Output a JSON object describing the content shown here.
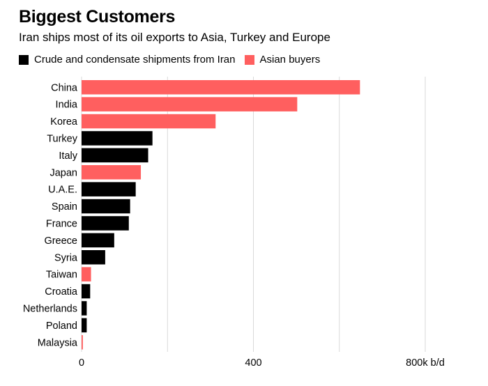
{
  "chart_data": {
    "type": "bar",
    "orientation": "horizontal",
    "title": "Biggest Customers",
    "subtitle": "Iran ships most of its oil exports to Asia, Turkey and Europe",
    "legend": [
      {
        "name": "Crude and condensate shipments from Iran",
        "color": "#000000"
      },
      {
        "name": "Asian buyers",
        "color": "#ff5f5f"
      }
    ],
    "legend_position": "top-left",
    "categories": [
      "China",
      "India",
      "Korea",
      "Turkey",
      "Italy",
      "Japan",
      "U.A.E.",
      "Spain",
      "France",
      "Greece",
      "Syria",
      "Taiwan",
      "Croatia",
      "Netherlands",
      "Poland",
      "Malaysia"
    ],
    "values": [
      648,
      502,
      312,
      165,
      155,
      138,
      126,
      113,
      110,
      76,
      55,
      22,
      20,
      12,
      12,
      3
    ],
    "groups": [
      "Asian buyers",
      "Asian buyers",
      "Asian buyers",
      "Crude and condensate shipments from Iran",
      "Crude and condensate shipments from Iran",
      "Asian buyers",
      "Crude and condensate shipments from Iran",
      "Crude and condensate shipments from Iran",
      "Crude and condensate shipments from Iran",
      "Crude and condensate shipments from Iran",
      "Crude and condensate shipments from Iran",
      "Asian buyers",
      "Crude and condensate shipments from Iran",
      "Crude and condensate shipments from Iran",
      "Crude and condensate shipments from Iran",
      "Asian buyers"
    ],
    "xlim": [
      0,
      800
    ],
    "x_ticks": [
      0,
      200,
      400,
      600,
      800
    ],
    "x_tick_labels": [
      "0",
      "",
      "400",
      "",
      "800k b/d"
    ],
    "grid": true
  }
}
